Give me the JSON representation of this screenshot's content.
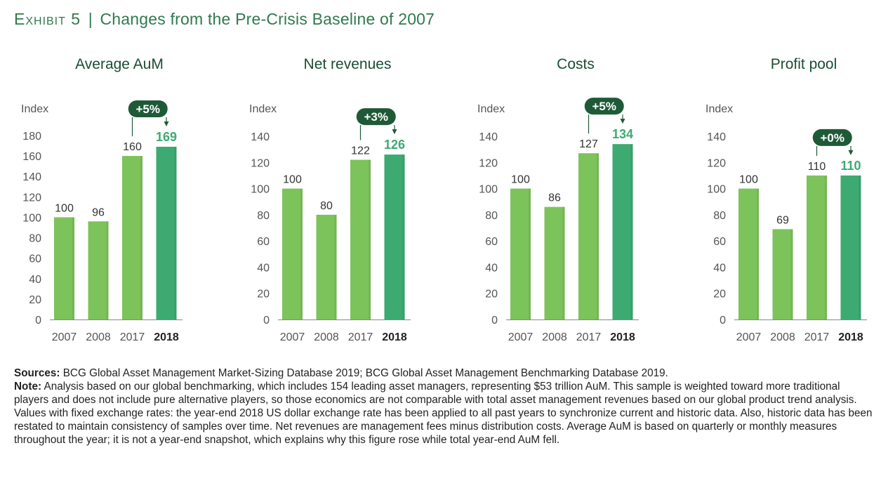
{
  "header": {
    "exhibit_label": "Exhibit 5",
    "separator": "|",
    "title": "Changes from the Pre-Crisis Baseline of 2007"
  },
  "colors": {
    "bar_light": "#7dc35b",
    "bar_dark": "#3daa72",
    "highlight_label": "#3daa72",
    "badge": "#1e5a36",
    "title_green": "#2f7a4d"
  },
  "chart_data": [
    {
      "type": "bar",
      "title": "Average AuM",
      "ylabel": "Index",
      "categories": [
        "2007",
        "2008",
        "2017",
        "2018"
      ],
      "values": [
        100,
        96,
        160,
        169
      ],
      "ylim": [
        0,
        180
      ],
      "yticks": [
        0,
        20,
        40,
        60,
        80,
        100,
        120,
        140,
        160,
        180
      ],
      "highlight_index": 3,
      "change_badge": "+5%"
    },
    {
      "type": "bar",
      "title": "Net revenues",
      "ylabel": "Index",
      "categories": [
        "2007",
        "2008",
        "2017",
        "2018"
      ],
      "values": [
        100,
        80,
        122,
        126
      ],
      "ylim": [
        0,
        140
      ],
      "yticks": [
        0,
        20,
        40,
        60,
        80,
        100,
        120,
        140
      ],
      "highlight_index": 3,
      "change_badge": "+3%"
    },
    {
      "type": "bar",
      "title": "Costs",
      "ylabel": "Index",
      "categories": [
        "2007",
        "2008",
        "2017",
        "2018"
      ],
      "values": [
        100,
        86,
        127,
        134
      ],
      "ylim": [
        0,
        140
      ],
      "yticks": [
        0,
        20,
        40,
        60,
        80,
        100,
        120,
        140
      ],
      "highlight_index": 3,
      "change_badge": "+5%"
    },
    {
      "type": "bar",
      "title": "Profit pool",
      "ylabel": "Index",
      "categories": [
        "2007",
        "2008",
        "2017",
        "2018"
      ],
      "values": [
        100,
        69,
        110,
        110
      ],
      "ylim": [
        0,
        140
      ],
      "yticks": [
        0,
        20,
        40,
        60,
        80,
        100,
        120,
        140
      ],
      "highlight_index": 3,
      "change_badge": "+0%"
    }
  ],
  "footer": {
    "sources_label": "Sources:",
    "sources_text": " BCG Global Asset Management Market-Sizing Database 2019; BCG Global Asset Management Benchmarking Database 2019.",
    "note_label": "Note:",
    "note_text": " Analysis based on our global benchmarking, which includes 154 leading asset managers, representing $53 trillion AuM. This sample is weighted toward more traditional players and does not include pure alternative players, so those economics are not comparable with total asset management revenues based on our global product trend analysis. Values with fixed exchange rates: the year-end 2018 US dollar exchange rate has been applied to all past years to synchronize current and historic data. Also, historic data has been restated to maintain consistency of samples over time. Net revenues are management fees minus distribution costs. Average AuM is based on quarterly or monthly measures throughout the year; it is not a year-end snapshot, which explains why this figure rose while total year-end AuM fell."
  }
}
